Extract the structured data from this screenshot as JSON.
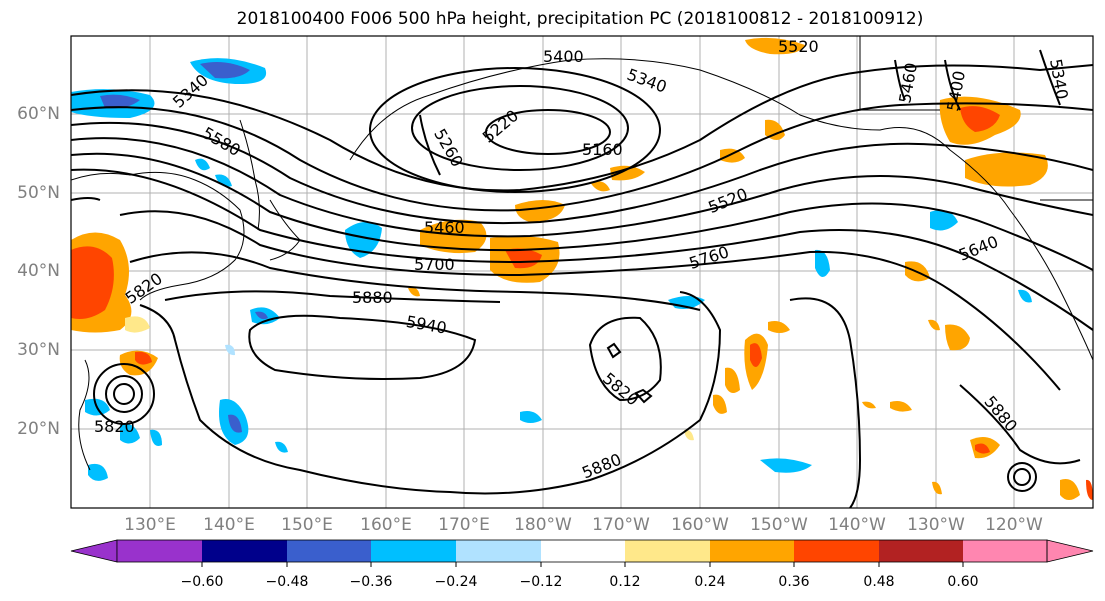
{
  "title": "2018100400 F006 500 hPa height, precipitation PC (2018100812 - 2018100912)",
  "lat_labels": [
    "60°N",
    "50°N",
    "40°N",
    "30°N",
    "20°N"
  ],
  "lon_labels": [
    "130°E",
    "140°E",
    "150°E",
    "160°E",
    "170°E",
    "180°W",
    "170°W",
    "160°W",
    "150°W",
    "140°W",
    "130°W",
    "120°W"
  ],
  "contour_labels": [
    "5400",
    "5340",
    "5520",
    "5460",
    "5400",
    "5340",
    "5340",
    "5220",
    "5160",
    "5260",
    "5580",
    "5520",
    "5460",
    "5700",
    "5640",
    "5760",
    "5820",
    "5880",
    "5940",
    "5820",
    "5820",
    "5880",
    "5880"
  ],
  "colorbar": {
    "ticks": [
      "−0.60",
      "−0.48",
      "−0.36",
      "−0.24",
      "−0.12",
      "0.12",
      "0.24",
      "0.36",
      "0.48",
      "0.60"
    ],
    "colors": [
      "#9932cc",
      "#00008b",
      "#3a5fcd",
      "#00bfff",
      "#b0e2ff",
      "#ffffff",
      "#ffe88a",
      "#ffa500",
      "#ff4500",
      "#b22222",
      "#ff86b0"
    ]
  },
  "fill_colors": {
    "blue_dark": "#3a5fcd",
    "blue": "#00bfff",
    "blue_light": "#b0e2ff",
    "yellow": "#ffe88a",
    "orange": "#ffa500",
    "red": "#ff4500"
  }
}
